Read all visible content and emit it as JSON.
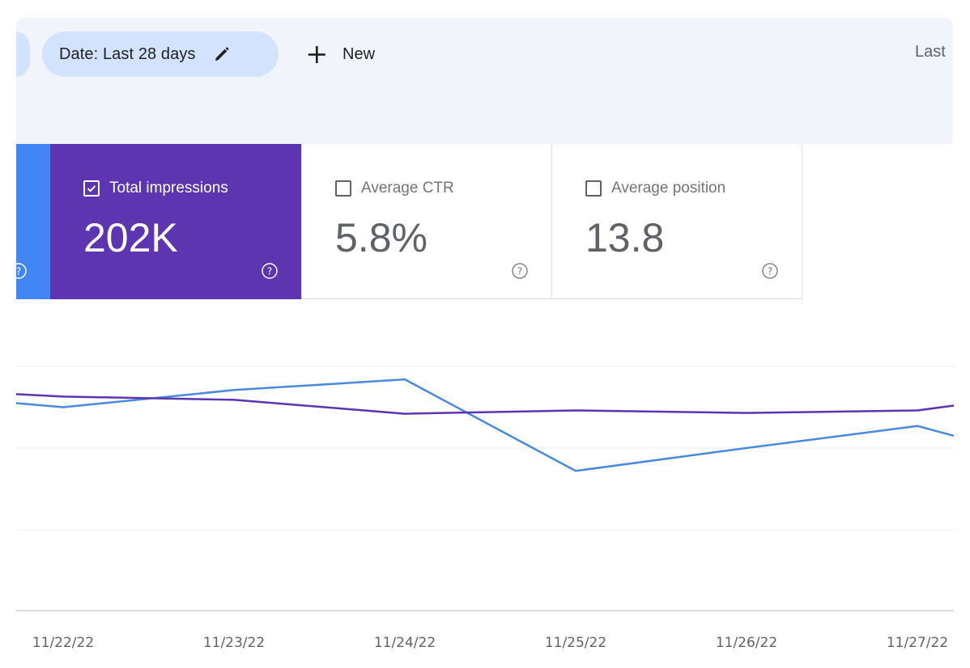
{
  "toolbar": {
    "date_filter_label": "Date: Last 28 days",
    "new_label": "New",
    "last_text": "Last"
  },
  "metrics": {
    "impressions": {
      "label": "Total impressions",
      "value": "202K",
      "checked": true,
      "color": "#5e35b1"
    },
    "ctr": {
      "label": "Average CTR",
      "value": "5.8%",
      "checked": false
    },
    "position": {
      "label": "Average position",
      "value": "13.8",
      "checked": false
    }
  },
  "icons": {
    "pencil": "pencil-icon",
    "plus": "plus-icon",
    "help": "help-circle-icon",
    "checkbox": "checkbox-icon"
  },
  "chart_data": {
    "type": "line",
    "x": [
      "11/22/22",
      "11/23/22",
      "11/24/22",
      "11/25/22",
      "11/26/22",
      "11/27/22"
    ],
    "series": [
      {
        "color": "#4a89dc",
        "values": [
          0.5,
          0.71,
          0.84,
          -0.28,
          0.0,
          0.27
        ]
      },
      {
        "color": "#5e35b1",
        "values": [
          0.63,
          0.59,
          0.42,
          0.46,
          0.43,
          0.46
        ]
      }
    ],
    "grid": true,
    "legend": "none"
  }
}
